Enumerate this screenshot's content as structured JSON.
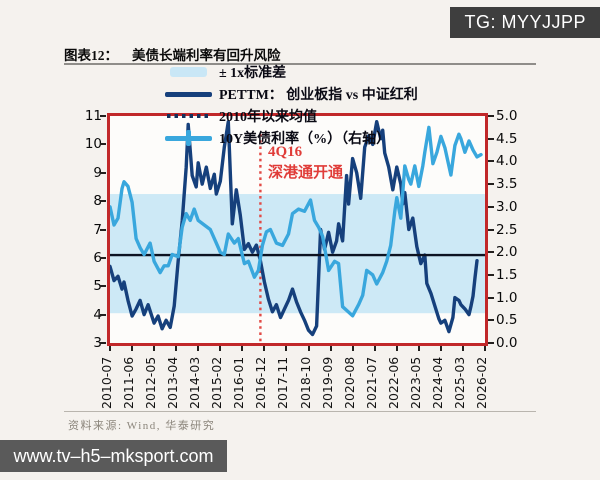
{
  "badge": {
    "text": "TG: MYYJJPP"
  },
  "title": {
    "prefix": "图表12：",
    "text": "美债长端利率有回升风险"
  },
  "legend": {
    "items": [
      {
        "key": "band",
        "label": "± 1x标准差"
      },
      {
        "key": "pettm",
        "label": "PETTM： 创业板指 vs 中证红利"
      },
      {
        "key": "mean",
        "label": "2010年以来均值"
      },
      {
        "key": "us10y",
        "label": "10Y美债利率（%）（右轴）"
      }
    ]
  },
  "annotation": {
    "line1": "4Q16",
    "line2": "深港通开通"
  },
  "source": {
    "text": "资料来源: Wind, 华泰研究"
  },
  "watermark": {
    "text": "www.tv–h5–mksport.com"
  },
  "colors": {
    "frame": "#c1282a",
    "band": "#cde9f6",
    "mean_line": "#0d1322",
    "pettm_line": "#16407c",
    "us10y_line": "#39a7dd",
    "event_line": "#e24a45",
    "annotation": "#e03c38",
    "badge_bg": "#3e3e3e",
    "watermark_bg": "#5a5a5a"
  },
  "chart_data": {
    "type": "line",
    "title": "美债长端利率有回升风险",
    "x_range": [
      "2010-07",
      "2026-02"
    ],
    "x_ticks": [
      "2010-07",
      "2011-06",
      "2012-05",
      "2013-04",
      "2014-03",
      "2015-02",
      "2016-01",
      "2016-12",
      "2017-11",
      "2018-10",
      "2019-09",
      "2020-08",
      "2021-07",
      "2022-06",
      "2023-05",
      "2024-04",
      "2025-03",
      "2026-02"
    ],
    "left_axis": {
      "ylim": [
        3,
        11
      ],
      "ticks": [
        3,
        4,
        5,
        6,
        7,
        8,
        9,
        10,
        11
      ]
    },
    "right_axis": {
      "ylim": [
        0,
        5
      ],
      "ticks": [
        "0.0",
        "0.5",
        "1.0",
        "1.5",
        "2.0",
        "2.5",
        "3.0",
        "3.5",
        "4.0",
        "4.5",
        "5.0"
      ]
    },
    "band": {
      "label": "± 1x标准差",
      "low": 4.05,
      "high": 8.25
    },
    "mean": {
      "label": "2010年以来均值",
      "value": 6.1
    },
    "event": {
      "date": "2016-10",
      "label": "4Q16 深港通开通"
    },
    "grid": false,
    "legend_position": "top-left",
    "series": [
      {
        "name": "PETTM： 创业板指 vs 中证红利",
        "axis": "left",
        "color": "#16407c",
        "points": [
          [
            "2010-07",
            5.7
          ],
          [
            "2010-09",
            5.2
          ],
          [
            "2010-11",
            5.35
          ],
          [
            "2011-01",
            4.9
          ],
          [
            "2011-02",
            5.15
          ],
          [
            "2011-04",
            4.5
          ],
          [
            "2011-06",
            3.95
          ],
          [
            "2011-08",
            4.2
          ],
          [
            "2011-10",
            4.5
          ],
          [
            "2011-12",
            4.0
          ],
          [
            "2012-02",
            4.35
          ],
          [
            "2012-05",
            3.7
          ],
          [
            "2012-07",
            3.95
          ],
          [
            "2012-09",
            3.5
          ],
          [
            "2012-11",
            3.8
          ],
          [
            "2013-01",
            3.55
          ],
          [
            "2013-03",
            4.3
          ],
          [
            "2013-05",
            5.9
          ],
          [
            "2013-07",
            7.3
          ],
          [
            "2013-09",
            9.2
          ],
          [
            "2013-10",
            10.7
          ],
          [
            "2013-12",
            8.9
          ],
          [
            "2014-02",
            8.5
          ],
          [
            "2014-03",
            9.35
          ],
          [
            "2014-05",
            8.6
          ],
          [
            "2014-07",
            9.2
          ],
          [
            "2014-09",
            8.45
          ],
          [
            "2014-11",
            8.95
          ],
          [
            "2014-12",
            8.25
          ],
          [
            "2015-02",
            8.7
          ],
          [
            "2015-04",
            9.9
          ],
          [
            "2015-06",
            10.8
          ],
          [
            "2015-08",
            7.2
          ],
          [
            "2015-10",
            8.4
          ],
          [
            "2015-12",
            7.5
          ],
          [
            "2016-02",
            6.3
          ],
          [
            "2016-04",
            6.5
          ],
          [
            "2016-06",
            6.2
          ],
          [
            "2016-08",
            6.45
          ],
          [
            "2016-10",
            5.9
          ],
          [
            "2016-12",
            5.15
          ],
          [
            "2017-02",
            4.55
          ],
          [
            "2017-04",
            4.1
          ],
          [
            "2017-06",
            4.35
          ],
          [
            "2017-08",
            3.9
          ],
          [
            "2017-10",
            4.2
          ],
          [
            "2017-12",
            4.5
          ],
          [
            "2018-02",
            4.9
          ],
          [
            "2018-04",
            4.45
          ],
          [
            "2018-06",
            4.1
          ],
          [
            "2018-08",
            3.8
          ],
          [
            "2018-10",
            3.45
          ],
          [
            "2018-12",
            3.3
          ],
          [
            "2019-02",
            3.6
          ],
          [
            "2019-04",
            7.0
          ],
          [
            "2019-06",
            6.3
          ],
          [
            "2019-08",
            6.9
          ],
          [
            "2019-10",
            6.2
          ],
          [
            "2019-12",
            6.6
          ],
          [
            "2020-01",
            7.2
          ],
          [
            "2020-03",
            6.6
          ],
          [
            "2020-05",
            8.9
          ],
          [
            "2020-06",
            7.9
          ],
          [
            "2020-08",
            9.5
          ],
          [
            "2020-10",
            9.0
          ],
          [
            "2020-12",
            8.1
          ],
          [
            "2021-02",
            9.9
          ],
          [
            "2021-04",
            10.3
          ],
          [
            "2021-06",
            10.0
          ],
          [
            "2021-08",
            10.8
          ],
          [
            "2021-10",
            10.2
          ],
          [
            "2021-11",
            10.5
          ],
          [
            "2021-12",
            9.7
          ],
          [
            "2022-02",
            9.2
          ],
          [
            "2022-04",
            8.4
          ],
          [
            "2022-06",
            9.2
          ],
          [
            "2022-08",
            8.6
          ],
          [
            "2022-09",
            7.9
          ],
          [
            "2022-10",
            8.3
          ],
          [
            "2022-12",
            7.0
          ],
          [
            "2023-02",
            7.4
          ],
          [
            "2023-04",
            6.4
          ],
          [
            "2023-06",
            5.8
          ],
          [
            "2023-08",
            6.1
          ],
          [
            "2023-09",
            5.1
          ],
          [
            "2023-11",
            4.75
          ],
          [
            "2024-01",
            4.3
          ],
          [
            "2024-03",
            3.85
          ],
          [
            "2024-04",
            3.7
          ],
          [
            "2024-06",
            3.8
          ],
          [
            "2024-08",
            3.4
          ],
          [
            "2024-10",
            3.9
          ],
          [
            "2024-11",
            4.6
          ],
          [
            "2025-01",
            4.5
          ],
          [
            "2025-02",
            4.35
          ],
          [
            "2025-04",
            4.2
          ],
          [
            "2025-06",
            4.0
          ],
          [
            "2025-07",
            4.3
          ],
          [
            "2025-08",
            4.65
          ],
          [
            "2025-09",
            5.3
          ],
          [
            "2025-10",
            5.9
          ]
        ]
      },
      {
        "name": "10Y美债利率（%）（右轴）",
        "axis": "right",
        "color": "#39a7dd",
        "points": [
          [
            "2010-07",
            3.0
          ],
          [
            "2010-09",
            2.6
          ],
          [
            "2010-11",
            2.75
          ],
          [
            "2011-01",
            3.4
          ],
          [
            "2011-02",
            3.55
          ],
          [
            "2011-04",
            3.45
          ],
          [
            "2011-06",
            3.1
          ],
          [
            "2011-08",
            2.3
          ],
          [
            "2011-10",
            2.1
          ],
          [
            "2011-12",
            1.95
          ],
          [
            "2012-03",
            2.2
          ],
          [
            "2012-05",
            1.8
          ],
          [
            "2012-08",
            1.55
          ],
          [
            "2012-10",
            1.7
          ],
          [
            "2012-12",
            1.7
          ],
          [
            "2013-02",
            1.95
          ],
          [
            "2013-05",
            1.9
          ],
          [
            "2013-07",
            2.55
          ],
          [
            "2013-09",
            2.85
          ],
          [
            "2013-11",
            2.7
          ],
          [
            "2014-01",
            2.95
          ],
          [
            "2014-03",
            2.7
          ],
          [
            "2014-06",
            2.6
          ],
          [
            "2014-09",
            2.5
          ],
          [
            "2014-12",
            2.2
          ],
          [
            "2015-02",
            2.0
          ],
          [
            "2015-04",
            1.95
          ],
          [
            "2015-06",
            2.4
          ],
          [
            "2015-09",
            2.2
          ],
          [
            "2015-11",
            2.3
          ],
          [
            "2016-02",
            1.75
          ],
          [
            "2016-04",
            1.8
          ],
          [
            "2016-07",
            1.45
          ],
          [
            "2016-09",
            1.6
          ],
          [
            "2016-11",
            2.15
          ],
          [
            "2017-01",
            2.45
          ],
          [
            "2017-03",
            2.5
          ],
          [
            "2017-06",
            2.2
          ],
          [
            "2017-09",
            2.15
          ],
          [
            "2017-12",
            2.4
          ],
          [
            "2018-02",
            2.85
          ],
          [
            "2018-05",
            2.95
          ],
          [
            "2018-08",
            2.9
          ],
          [
            "2018-11",
            3.15
          ],
          [
            "2019-01",
            2.7
          ],
          [
            "2019-03",
            2.55
          ],
          [
            "2019-05",
            2.35
          ],
          [
            "2019-08",
            1.6
          ],
          [
            "2019-11",
            1.8
          ],
          [
            "2020-01",
            1.75
          ],
          [
            "2020-03",
            0.8
          ],
          [
            "2020-06",
            0.68
          ],
          [
            "2020-08",
            0.6
          ],
          [
            "2020-11",
            0.85
          ],
          [
            "2021-01",
            1.05
          ],
          [
            "2021-03",
            1.6
          ],
          [
            "2021-06",
            1.5
          ],
          [
            "2021-08",
            1.3
          ],
          [
            "2021-11",
            1.55
          ],
          [
            "2022-01",
            1.8
          ],
          [
            "2022-03",
            2.15
          ],
          [
            "2022-05",
            2.9
          ],
          [
            "2022-06",
            3.2
          ],
          [
            "2022-08",
            2.75
          ],
          [
            "2022-10",
            3.9
          ],
          [
            "2022-12",
            3.6
          ],
          [
            "2023-01",
            3.5
          ],
          [
            "2023-03",
            3.9
          ],
          [
            "2023-05",
            3.45
          ],
          [
            "2023-07",
            3.9
          ],
          [
            "2023-08",
            4.2
          ],
          [
            "2023-10",
            4.75
          ],
          [
            "2023-12",
            3.95
          ],
          [
            "2024-02",
            4.2
          ],
          [
            "2024-04",
            4.55
          ],
          [
            "2024-06",
            4.3
          ],
          [
            "2024-09",
            3.7
          ],
          [
            "2024-11",
            4.35
          ],
          [
            "2025-01",
            4.6
          ],
          [
            "2025-02",
            4.5
          ],
          [
            "2025-04",
            4.2
          ],
          [
            "2025-06",
            4.45
          ],
          [
            "2025-08",
            4.25
          ],
          [
            "2025-10",
            4.1
          ],
          [
            "2025-12",
            4.15
          ]
        ]
      }
    ]
  }
}
